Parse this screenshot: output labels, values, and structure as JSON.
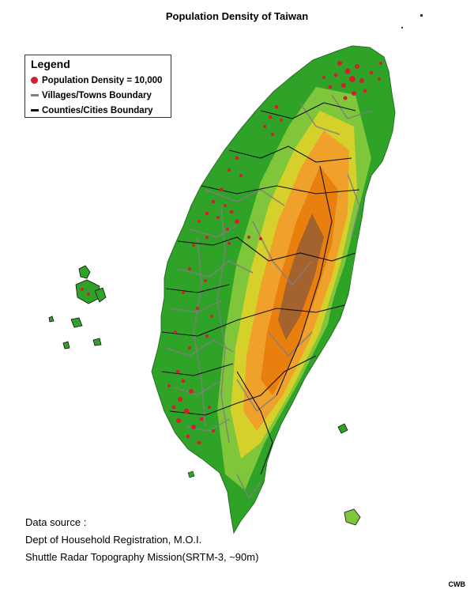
{
  "title": "Population Density of Taiwan",
  "legend": {
    "title": "Legend",
    "items": [
      {
        "label": "Population Density = 10,000",
        "symbol": "dot",
        "color": "#d51f2d"
      },
      {
        "label": "Villages/Towns Boundary",
        "symbol": "line",
        "color": "#7f7f7f"
      },
      {
        "label": "Counties/Cities Boundary",
        "symbol": "line",
        "color": "#111111"
      }
    ]
  },
  "map": {
    "elevation_colors": [
      "#2fa327",
      "#7fc63a",
      "#d6d12a",
      "#f0a12c",
      "#e9800d",
      "#8c5a3a"
    ]
  },
  "source": {
    "heading": "Data source :",
    "lines": [
      "Dept of Household Registration, M.O.I.",
      "Shuttle Radar Topography Mission(SRTM-3, ~90m)"
    ]
  },
  "credit": "CWB"
}
